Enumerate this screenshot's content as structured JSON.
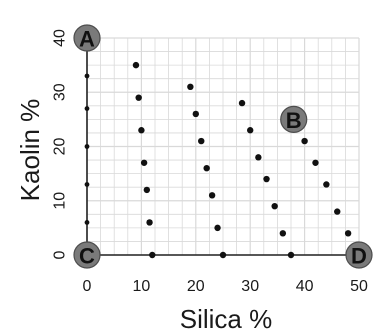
{
  "chart_data": {
    "type": "scatter",
    "title": "",
    "xlabel": "Silica %",
    "ylabel": "Kaolin %",
    "xlim": [
      0,
      50
    ],
    "ylim": [
      0,
      40
    ],
    "x_ticks": [
      "0",
      "10",
      "20",
      "30",
      "40",
      "50"
    ],
    "y_ticks": [
      "0",
      "10",
      "20",
      "30",
      "40"
    ],
    "grid": true,
    "series": [
      {
        "x": [
          0,
          0,
          0,
          0,
          0,
          0,
          0,
          0
        ],
        "y": [
          0,
          6,
          13,
          20,
          27,
          33,
          40,
          40
        ]
      },
      {
        "x": [
          9,
          9.5,
          10,
          10.5,
          11,
          11.5,
          12
        ],
        "y": [
          35,
          29,
          23,
          17,
          12,
          6,
          0
        ]
      },
      {
        "x": [
          19,
          20,
          21,
          22,
          23,
          24,
          25
        ],
        "y": [
          31,
          26,
          21,
          16,
          11,
          5,
          0
        ]
      },
      {
        "x": [
          28.5,
          30,
          31.5,
          33,
          34.5,
          36,
          37.5
        ],
        "y": [
          28,
          23,
          18,
          14,
          9,
          4,
          0
        ]
      },
      {
        "x": [
          38,
          40,
          42,
          44,
          46,
          48,
          50
        ],
        "y": [
          25,
          21,
          17,
          13,
          8,
          4,
          0
        ]
      }
    ],
    "corner_labels": [
      {
        "label": "A",
        "x": 0,
        "y": 40
      },
      {
        "label": "B",
        "x": 38,
        "y": 25
      },
      {
        "label": "C",
        "x": 0,
        "y": 0
      },
      {
        "label": "D",
        "x": 50,
        "y": 0
      }
    ],
    "colors": {
      "points": "#111111",
      "grid": "#d9d9d9",
      "axis": "#222222",
      "corner_fill": "#7a7a7a",
      "corner_stroke": "#4d4d4d"
    }
  }
}
